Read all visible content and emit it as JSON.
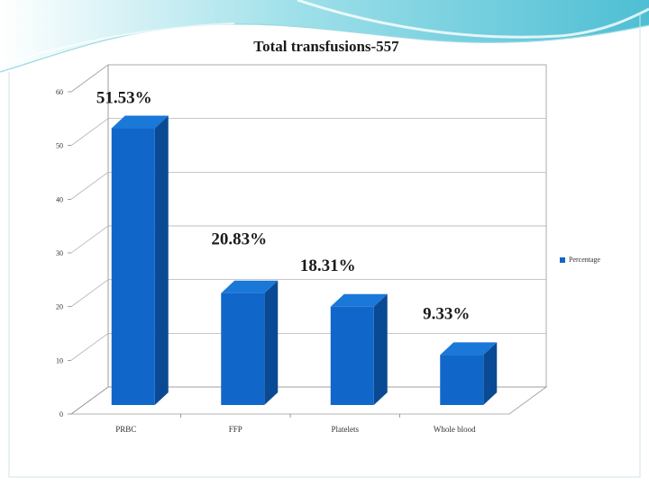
{
  "title": "Total transfusions-557",
  "chart_data": {
    "type": "bar",
    "title": "Total transfusions-557",
    "categories": [
      "PRBC",
      "FFP",
      "Platelets",
      "Whole blood"
    ],
    "series": [
      {
        "name": "Percentage",
        "values": [
          51.53,
          20.83,
          18.31,
          9.33
        ]
      }
    ],
    "data_labels": [
      "51.53%",
      "20.83%",
      "18.31%",
      "9.33%"
    ],
    "ylim": [
      0,
      60
    ],
    "yticks": [
      0,
      10,
      20,
      30,
      40,
      50,
      60
    ],
    "ytick_labels": [
      "0",
      "10",
      "20",
      "30",
      "40",
      "50",
      "60"
    ],
    "grid": true,
    "style": "3d-bar",
    "legend_position": "right",
    "xlabel": "",
    "ylabel": ""
  },
  "colors": {
    "bar_front": "#1167c9",
    "bar_side": "#0a4a94",
    "bar_top": "#1a78d8",
    "accent_wave": "#5bc8dc"
  },
  "legend": {
    "label": "Percentage"
  }
}
